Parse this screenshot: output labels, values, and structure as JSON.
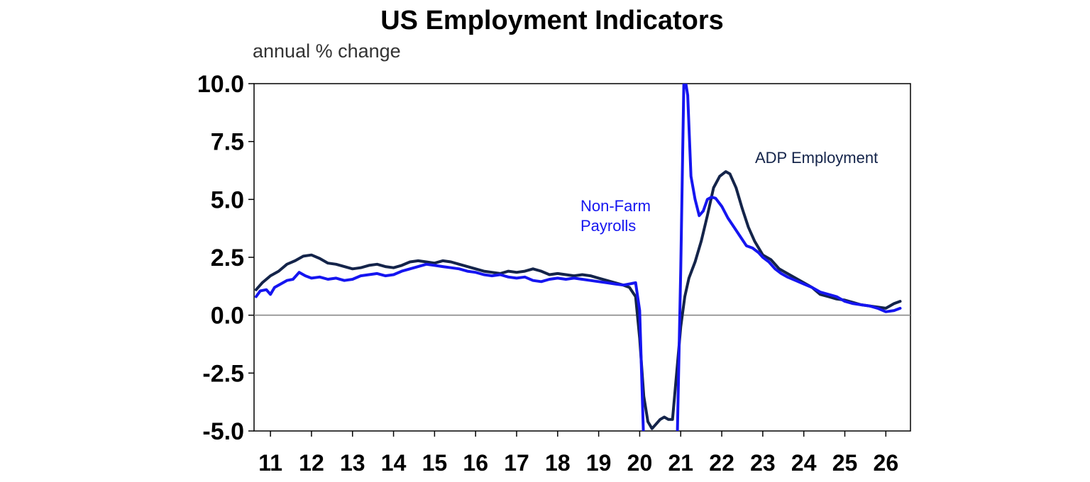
{
  "chart_data": {
    "type": "line",
    "title": "US Employment Indicators",
    "units_label": "annual % change",
    "xlabel": "",
    "ylabel": "",
    "xlim": [
      2010.6,
      2026.6
    ],
    "ylim": [
      -5.0,
      10.0
    ],
    "y_ticks": [
      "10.0",
      "7.5",
      "5.0",
      "2.5",
      "0.0",
      "-2.5",
      "-5.0"
    ],
    "y_tick_values": [
      10.0,
      7.5,
      5.0,
      2.5,
      0.0,
      -2.5,
      -5.0
    ],
    "x_ticks": [
      "11",
      "12",
      "13",
      "14",
      "15",
      "16",
      "17",
      "18",
      "19",
      "20",
      "21",
      "22",
      "23",
      "24",
      "25",
      "26"
    ],
    "x_tick_values": [
      2011,
      2012,
      2013,
      2014,
      2015,
      2016,
      2017,
      2018,
      2019,
      2020,
      2021,
      2022,
      2023,
      2024,
      2025,
      2026
    ],
    "zero_line": true,
    "grid": false,
    "colors": {
      "nfp": "#1515f0",
      "adp": "#14244a",
      "axis": "#000000",
      "zero": "#808080"
    },
    "series": [
      {
        "name": "Non-Farm Payrolls",
        "label_lines": [
          "Non-Farm",
          "Payrolls"
        ],
        "color": "#1515f0",
        "x": [
          2010.65,
          2010.75,
          2010.9,
          2011.0,
          2011.1,
          2011.25,
          2011.4,
          2011.55,
          2011.7,
          2011.85,
          2012.0,
          2012.2,
          2012.4,
          2012.6,
          2012.8,
          2013.0,
          2013.2,
          2013.4,
          2013.6,
          2013.8,
          2014.0,
          2014.2,
          2014.4,
          2014.6,
          2014.8,
          2015.0,
          2015.2,
          2015.4,
          2015.6,
          2015.8,
          2016.0,
          2016.2,
          2016.4,
          2016.6,
          2016.8,
          2017.0,
          2017.2,
          2017.4,
          2017.6,
          2017.8,
          2018.0,
          2018.2,
          2018.4,
          2018.6,
          2018.8,
          2019.0,
          2019.2,
          2019.4,
          2019.6,
          2019.75,
          2019.9,
          2020.0,
          2020.1,
          2020.17,
          2020.25,
          2020.35,
          2020.5,
          2020.65,
          2020.8,
          2020.92,
          2021.0,
          2021.08,
          2021.17,
          2021.25,
          2021.35,
          2021.45,
          2021.55,
          2021.65,
          2021.75,
          2021.85,
          2022.0,
          2022.15,
          2022.3,
          2022.45,
          2022.6,
          2022.75,
          2022.9,
          2023.0,
          2023.15,
          2023.3,
          2023.45,
          2023.6,
          2023.8,
          2024.0,
          2024.2,
          2024.4,
          2024.6,
          2024.8,
          2025.0,
          2025.2,
          2025.4,
          2025.6,
          2025.8,
          2026.0,
          2026.2,
          2026.35
        ],
        "values": [
          0.8,
          1.05,
          1.1,
          0.9,
          1.2,
          1.35,
          1.5,
          1.55,
          1.85,
          1.7,
          1.6,
          1.65,
          1.55,
          1.6,
          1.5,
          1.55,
          1.7,
          1.75,
          1.8,
          1.7,
          1.75,
          1.9,
          2.0,
          2.1,
          2.2,
          2.15,
          2.1,
          2.05,
          2.0,
          1.9,
          1.85,
          1.75,
          1.7,
          1.75,
          1.65,
          1.6,
          1.65,
          1.5,
          1.45,
          1.55,
          1.6,
          1.55,
          1.6,
          1.55,
          1.5,
          1.45,
          1.4,
          1.35,
          1.3,
          1.35,
          1.4,
          0.2,
          -5.6,
          -6.0,
          -6.0,
          -6.0,
          -6.0,
          -6.0,
          -6.0,
          -5.0,
          2.0,
          10.5,
          9.5,
          6.0,
          5.0,
          4.3,
          4.5,
          5.0,
          5.1,
          5.05,
          4.7,
          4.2,
          3.8,
          3.4,
          3.0,
          2.9,
          2.7,
          2.5,
          2.3,
          2.0,
          1.8,
          1.65,
          1.5,
          1.35,
          1.2,
          1.0,
          0.9,
          0.8,
          0.6,
          0.5,
          0.45,
          0.4,
          0.3,
          0.15,
          0.2,
          0.3
        ]
      },
      {
        "name": "ADP Employment",
        "label_lines": [
          "ADP Employment"
        ],
        "color": "#14244a",
        "x": [
          2010.65,
          2010.8,
          2011.0,
          2011.2,
          2011.4,
          2011.6,
          2011.8,
          2012.0,
          2012.2,
          2012.4,
          2012.6,
          2012.8,
          2013.0,
          2013.2,
          2013.4,
          2013.6,
          2013.8,
          2014.0,
          2014.2,
          2014.4,
          2014.6,
          2014.8,
          2015.0,
          2015.2,
          2015.4,
          2015.6,
          2015.8,
          2016.0,
          2016.2,
          2016.4,
          2016.6,
          2016.8,
          2017.0,
          2017.2,
          2017.4,
          2017.6,
          2017.8,
          2018.0,
          2018.2,
          2018.4,
          2018.6,
          2018.8,
          2019.0,
          2019.2,
          2019.4,
          2019.6,
          2019.75,
          2019.9,
          2020.0,
          2020.1,
          2020.2,
          2020.3,
          2020.4,
          2020.5,
          2020.6,
          2020.7,
          2020.8,
          2020.9,
          2021.0,
          2021.1,
          2021.2,
          2021.35,
          2021.5,
          2021.65,
          2021.8,
          2021.95,
          2022.1,
          2022.2,
          2022.35,
          2022.5,
          2022.65,
          2022.8,
          2023.0,
          2023.2,
          2023.4,
          2023.6,
          2023.8,
          2024.0,
          2024.2,
          2024.4,
          2024.6,
          2024.8,
          2025.0,
          2025.2,
          2025.4,
          2025.6,
          2025.8,
          2026.0,
          2026.2,
          2026.35
        ],
        "values": [
          1.1,
          1.4,
          1.7,
          1.9,
          2.2,
          2.35,
          2.55,
          2.6,
          2.45,
          2.25,
          2.2,
          2.1,
          2.0,
          2.05,
          2.15,
          2.2,
          2.1,
          2.05,
          2.15,
          2.3,
          2.35,
          2.3,
          2.25,
          2.35,
          2.3,
          2.2,
          2.1,
          2.0,
          1.9,
          1.85,
          1.8,
          1.9,
          1.85,
          1.9,
          2.0,
          1.9,
          1.75,
          1.8,
          1.75,
          1.7,
          1.75,
          1.7,
          1.6,
          1.5,
          1.4,
          1.3,
          1.2,
          0.8,
          -1.0,
          -3.5,
          -4.6,
          -4.9,
          -4.7,
          -4.5,
          -4.4,
          -4.5,
          -4.5,
          -2.5,
          -0.5,
          0.8,
          1.6,
          2.3,
          3.2,
          4.3,
          5.5,
          6.0,
          6.2,
          6.1,
          5.5,
          4.6,
          3.8,
          3.2,
          2.6,
          2.4,
          2.0,
          1.8,
          1.6,
          1.4,
          1.2,
          0.9,
          0.8,
          0.7,
          0.65,
          0.55,
          0.45,
          0.4,
          0.35,
          0.3,
          0.5,
          0.6
        ]
      }
    ]
  }
}
